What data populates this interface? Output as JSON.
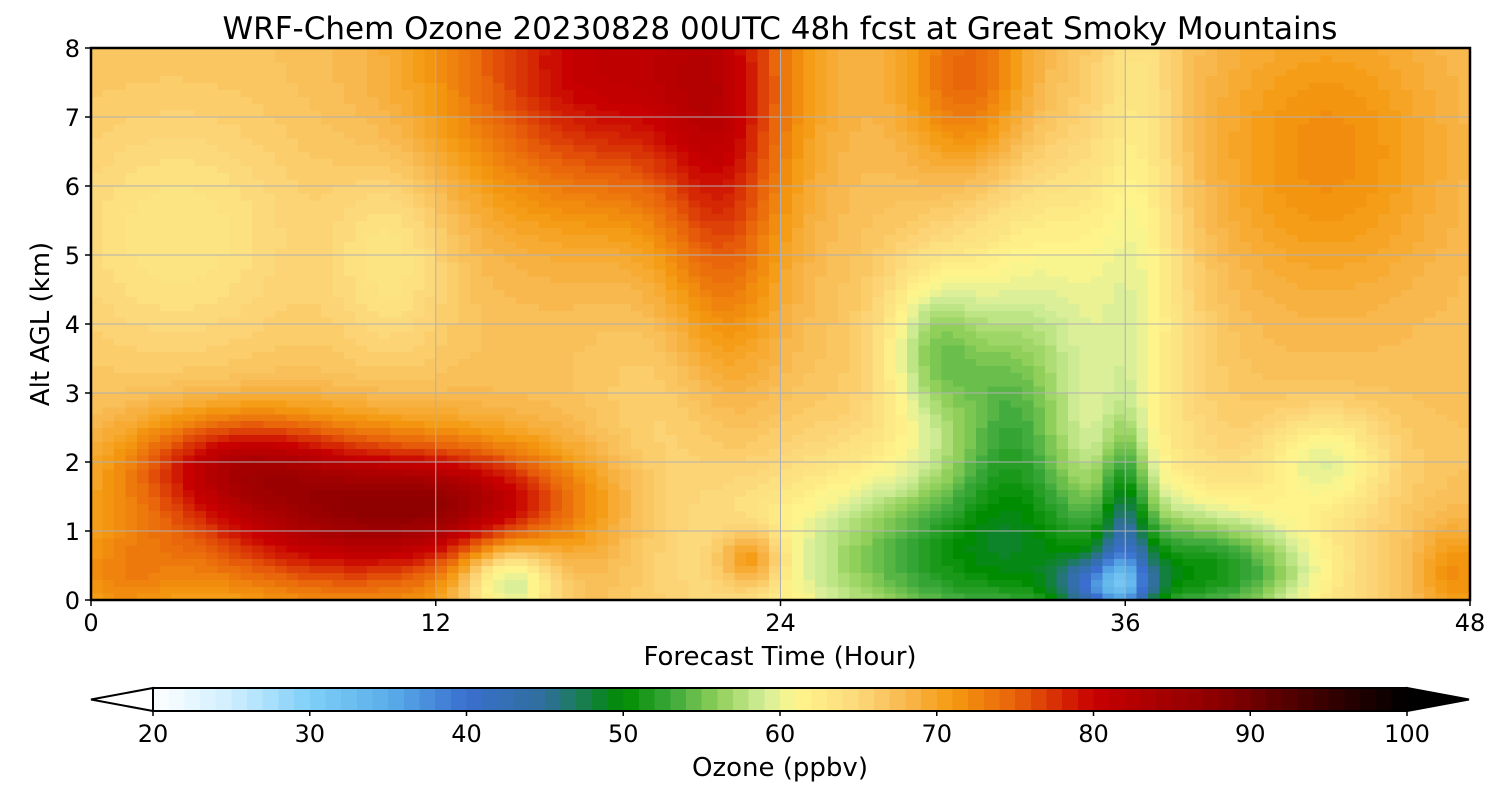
{
  "chart_data": {
    "type": "heatmap",
    "title": "WRF-Chem Ozone  20230828 00UTC 48h fcst at Great Smoky Mountains",
    "xlabel": "Forecast Time (Hour)",
    "ylabel": "Alt AGL (km)",
    "xlim": [
      0,
      48
    ],
    "ylim": [
      0,
      8
    ],
    "xticks": [
      "0",
      "12",
      "24",
      "36",
      "48"
    ],
    "yticks": [
      "0",
      "1",
      "2",
      "3",
      "4",
      "5",
      "6",
      "7",
      "8"
    ],
    "grid": true,
    "colorbar": {
      "label": "Ozone  (ppbv)",
      "ticks": [
        "20",
        "30",
        "40",
        "50",
        "60",
        "70",
        "80",
        "90",
        "100"
      ],
      "range": [
        20,
        100
      ],
      "extend": "both",
      "stops": [
        {
          "value": 20,
          "color": "#ffffff"
        },
        {
          "value": 25,
          "color": "#cfeeff"
        },
        {
          "value": 30,
          "color": "#7fcff8"
        },
        {
          "value": 35,
          "color": "#5aaee8"
        },
        {
          "value": 40,
          "color": "#3a6fcf"
        },
        {
          "value": 45,
          "color": "#2f6f9a"
        },
        {
          "value": 50,
          "color": "#008c00"
        },
        {
          "value": 53,
          "color": "#3aa83a"
        },
        {
          "value": 56,
          "color": "#8fcf5a"
        },
        {
          "value": 59,
          "color": "#d4ee9a"
        },
        {
          "value": 61,
          "color": "#fff68c"
        },
        {
          "value": 65,
          "color": "#fcd87a"
        },
        {
          "value": 68,
          "color": "#f8b84e"
        },
        {
          "value": 71,
          "color": "#f59a10"
        },
        {
          "value": 75,
          "color": "#e8620a"
        },
        {
          "value": 80,
          "color": "#c80000"
        },
        {
          "value": 88,
          "color": "#8a0000"
        },
        {
          "value": 94,
          "color": "#400000"
        },
        {
          "value": 100,
          "color": "#000000"
        }
      ]
    },
    "ozone_field": {
      "units": "ppbv",
      "background": 67,
      "features": [
        {
          "t": 9,
          "z": 1.2,
          "st": 4.5,
          "sz": 0.8,
          "v": 16
        },
        {
          "t": 5,
          "z": 2.0,
          "st": 2.5,
          "sz": 0.5,
          "v": 10
        },
        {
          "t": 13,
          "z": 1.5,
          "st": 3,
          "sz": 0.5,
          "v": 8
        },
        {
          "t": 18,
          "z": 7.8,
          "st": 4,
          "sz": 1.5,
          "v": 14
        },
        {
          "t": 22,
          "z": 6.0,
          "st": 1.5,
          "sz": 2.5,
          "v": 8
        },
        {
          "t": 30.5,
          "z": 7.6,
          "st": 1.5,
          "sz": 1.0,
          "v": 8
        },
        {
          "t": 43,
          "z": 6.5,
          "st": 3,
          "sz": 1.5,
          "v": 5
        },
        {
          "t": 23,
          "z": 0.6,
          "st": 0.8,
          "sz": 0.3,
          "v": 8
        },
        {
          "t": 47.5,
          "z": 0.4,
          "st": 1,
          "sz": 0.5,
          "v": 5
        },
        {
          "t": 1,
          "z": 0.3,
          "st": 1.5,
          "sz": 0.5,
          "v": 4
        },
        {
          "t": 31,
          "z": 0.6,
          "st": 5,
          "sz": 1.0,
          "v": -16
        },
        {
          "t": 32,
          "z": 2.6,
          "st": 1.5,
          "sz": 1.1,
          "v": -9
        },
        {
          "t": 29.3,
          "z": 3.6,
          "st": 1.2,
          "sz": 0.8,
          "v": -9
        },
        {
          "t": 33,
          "z": 4.5,
          "st": 2.5,
          "sz": 1.5,
          "v": -5
        },
        {
          "t": 36,
          "z": 0.9,
          "st": 0.6,
          "sz": 1.2,
          "v": -10
        },
        {
          "t": 35.3,
          "z": 0.2,
          "st": 1.2,
          "sz": 0.3,
          "v": -15
        },
        {
          "t": 39.5,
          "z": 0.4,
          "st": 2.5,
          "sz": 0.6,
          "v": -12
        },
        {
          "t": 14.5,
          "z": 0.3,
          "st": 1.2,
          "sz": 0.4,
          "v": -12
        },
        {
          "t": 43,
          "z": 2.0,
          "st": 1.5,
          "sz": 0.5,
          "v": -7
        },
        {
          "t": 3,
          "z": 5.3,
          "st": 3,
          "sz": 1.2,
          "v": -4
        },
        {
          "t": 10.5,
          "z": 5.0,
          "st": 1.5,
          "sz": 1.0,
          "v": -4
        },
        {
          "t": 21,
          "z": 2.5,
          "st": 2,
          "sz": 1.5,
          "v": -3
        },
        {
          "t": 36.5,
          "z": 6.5,
          "st": 1.0,
          "sz": 2.5,
          "v": -4
        },
        {
          "t": 36,
          "z": 3.5,
          "st": 2,
          "sz": 1.5,
          "v": -3
        }
      ],
      "surface_layer": {
        "depth_km": 0.05,
        "value": 48
      }
    }
  }
}
